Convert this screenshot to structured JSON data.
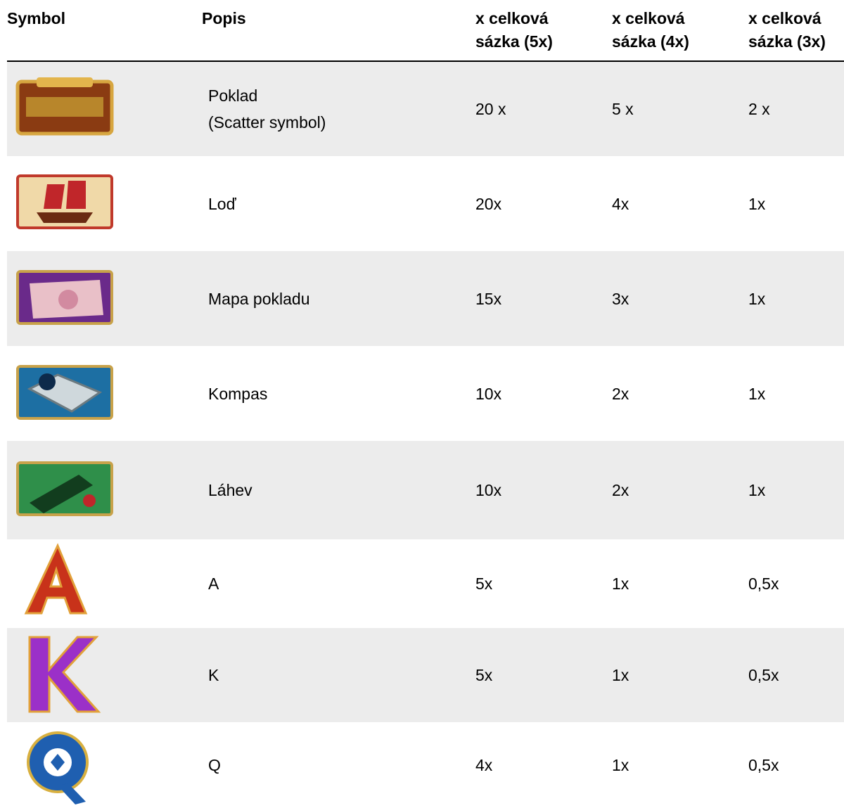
{
  "table": {
    "headers": [
      [
        "Symbol"
      ],
      [
        "Popis"
      ],
      [
        "x celková",
        "sázka (5x)"
      ],
      [
        "x celková",
        "sázka (4x)"
      ],
      [
        "x celková",
        "sázka (3x)"
      ]
    ],
    "rows": [
      {
        "description": [
          "Poklad",
          "(Scatter symbol)"
        ],
        "payouts": [
          "20 x",
          "5 x",
          "2 x"
        ]
      },
      {
        "description": [
          "Loď"
        ],
        "payouts": [
          "20x",
          "4x",
          "1x"
        ]
      },
      {
        "description": [
          "Mapa pokladu"
        ],
        "payouts": [
          "15x",
          "3x",
          "1x"
        ]
      },
      {
        "description": [
          "Kompas"
        ],
        "payouts": [
          "10x",
          "2x",
          "1x"
        ]
      },
      {
        "description": [
          "Láhev"
        ],
        "payouts": [
          "10x",
          "2x",
          "1x"
        ]
      },
      {
        "description": [
          "A"
        ],
        "payouts": [
          "5x",
          "1x",
          "0,5x"
        ]
      },
      {
        "description": [
          "K"
        ],
        "payouts": [
          "5x",
          "1x",
          "0,5x"
        ]
      },
      {
        "description": [
          "Q"
        ],
        "payouts": [
          "4x",
          "1x",
          "0,5x"
        ]
      }
    ]
  }
}
